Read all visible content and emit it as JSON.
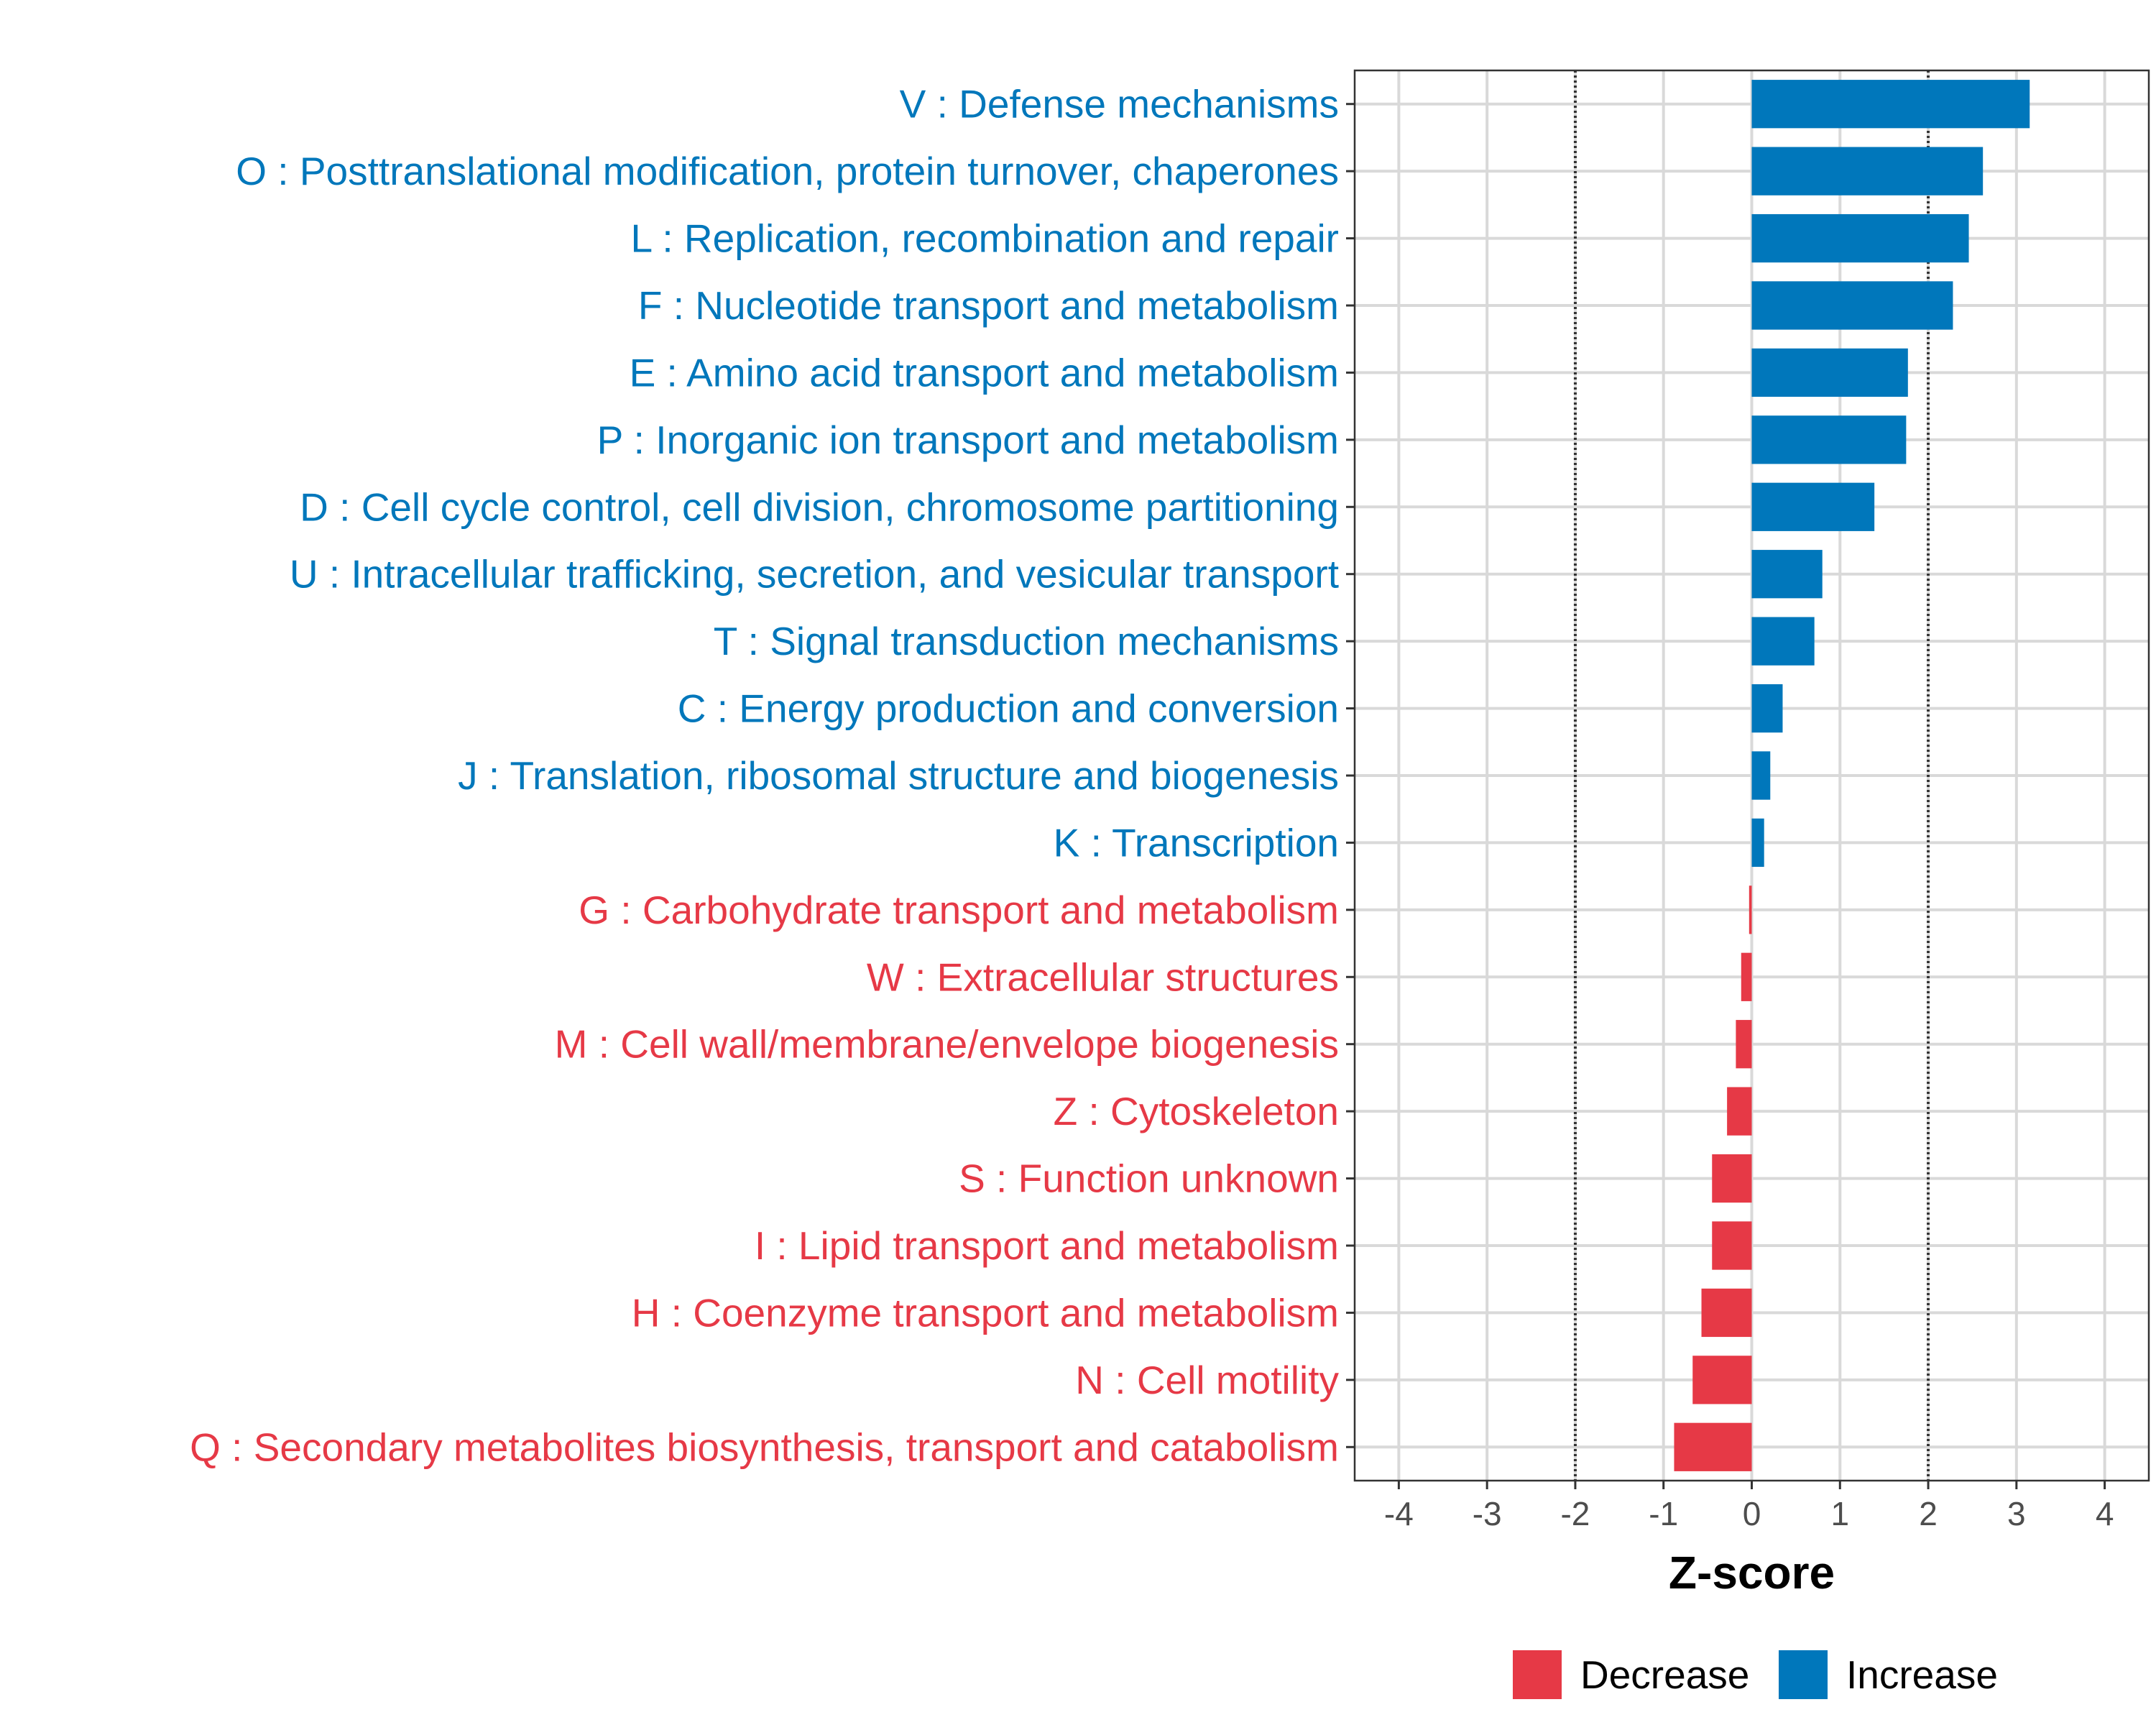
{
  "chart_data": {
    "type": "bar",
    "orientation": "horizontal",
    "xlabel": "Z-score",
    "xlim": [
      -4.5,
      4.5
    ],
    "xticks": [
      "-4",
      "-3",
      "-2",
      "-1",
      "0",
      "1",
      "2",
      "3",
      "4"
    ],
    "reference_lines": [
      -2,
      2
    ],
    "grid": true,
    "colors": {
      "Increase": "#0077BB",
      "Decrease": "#E63946"
    },
    "legend": {
      "position": "bottom",
      "entries": [
        {
          "label": "Decrease",
          "color": "#E63946"
        },
        {
          "label": "Increase",
          "color": "#0077BB"
        }
      ]
    },
    "categories": [
      {
        "label": "V : Defense mechanisms",
        "value": 3.15,
        "group": "Increase"
      },
      {
        "label": "O : Posttranslational modification, protein turnover, chaperones",
        "value": 2.62,
        "group": "Increase"
      },
      {
        "label": "L : Replication, recombination and repair",
        "value": 2.46,
        "group": "Increase"
      },
      {
        "label": "F : Nucleotide transport and metabolism",
        "value": 2.28,
        "group": "Increase"
      },
      {
        "label": "E : Amino acid transport and metabolism",
        "value": 1.77,
        "group": "Increase"
      },
      {
        "label": "P : Inorganic ion transport and metabolism",
        "value": 1.75,
        "group": "Increase"
      },
      {
        "label": "D : Cell cycle control, cell division, chromosome partitioning",
        "value": 1.39,
        "group": "Increase"
      },
      {
        "label": "U : Intracellular trafficking, secretion, and vesicular transport",
        "value": 0.8,
        "group": "Increase"
      },
      {
        "label": "T : Signal transduction mechanisms",
        "value": 0.71,
        "group": "Increase"
      },
      {
        "label": "C : Energy production and conversion",
        "value": 0.35,
        "group": "Increase"
      },
      {
        "label": "J : Translation, ribosomal structure and biogenesis",
        "value": 0.21,
        "group": "Increase"
      },
      {
        "label": "K : Transcription",
        "value": 0.14,
        "group": "Increase"
      },
      {
        "label": "G : Carbohydrate transport and metabolism",
        "value": -0.03,
        "group": "Decrease"
      },
      {
        "label": "W : Extracellular structures",
        "value": -0.12,
        "group": "Decrease"
      },
      {
        "label": "M : Cell wall/membrane/envelope biogenesis",
        "value": -0.18,
        "group": "Decrease"
      },
      {
        "label": "Z : Cytoskeleton",
        "value": -0.28,
        "group": "Decrease"
      },
      {
        "label": "S : Function unknown",
        "value": -0.45,
        "group": "Decrease"
      },
      {
        "label": "I : Lipid transport and metabolism",
        "value": -0.45,
        "group": "Decrease"
      },
      {
        "label": "H : Coenzyme transport and metabolism",
        "value": -0.57,
        "group": "Decrease"
      },
      {
        "label": "N : Cell motility",
        "value": -0.67,
        "group": "Decrease"
      },
      {
        "label": "Q : Secondary metabolites biosynthesis, transport and catabolism",
        "value": -0.88,
        "group": "Decrease"
      }
    ]
  }
}
